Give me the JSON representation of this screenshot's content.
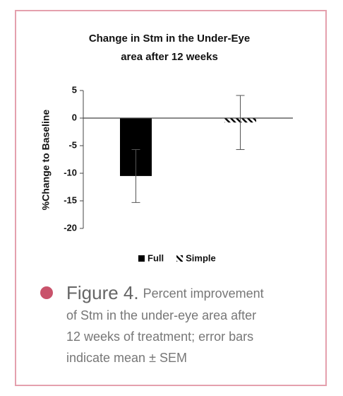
{
  "chart_data": {
    "type": "bar",
    "title": [
      "Change in Stm in the Under-Eye",
      "area after 12 weeks"
    ],
    "y_label": "%Change to Baseline",
    "categories": [
      null
    ],
    "series": [
      {
        "name": "Full",
        "color": "#000000",
        "fill": "solid",
        "values": [
          -10.5
        ],
        "errors": [
          4.8
        ]
      },
      {
        "name": "Simple",
        "color": "#000000",
        "fill": "hatch",
        "values": [
          -0.8
        ],
        "errors": [
          4.9
        ]
      }
    ],
    "ylim": [
      -20,
      5
    ],
    "yticks": [
      -20,
      -15,
      -10,
      -5,
      0,
      5
    ],
    "grid": false,
    "legend": "bottom"
  },
  "caption": {
    "label": "Figure 4.",
    "lines": [
      "Percent improvement",
      "of Stm in the under-eye area after",
      "12 weeks of treatment; error bars",
      "indicate mean ± SEM"
    ]
  }
}
